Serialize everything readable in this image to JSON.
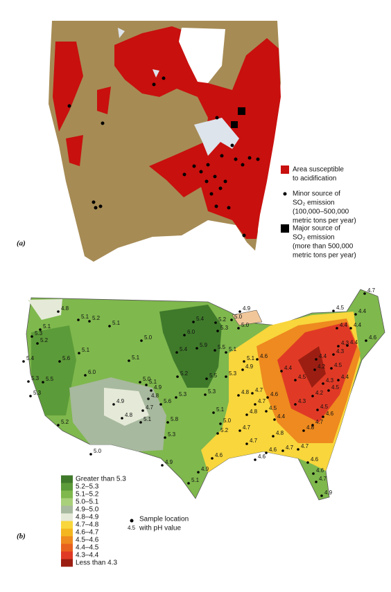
{
  "panels": [
    {
      "label": "(a)",
      "legend": [
        {
          "lines": [
            "Area susceptible",
            "to acidification"
          ],
          "color": "#c8100e"
        },
        {
          "lines": [
            "Minor source of",
            "SO₂ emission",
            "(100,000–500,000",
            "metric tons per year)"
          ],
          "color": "#000000"
        },
        {
          "lines": [
            "Major source of",
            "SO₂ emission",
            "(more than 500,000",
            "metric tons per year)"
          ],
          "color": "#000000"
        }
      ]
    },
    {
      "label": "(b)",
      "legend": [
        {
          "label": "Greater than 5.3",
          "color": "#3f7a2b"
        },
        {
          "label": "5.2–5.3",
          "color": "#5c9b39"
        },
        {
          "label": "5.1–5.2",
          "color": "#7fb84d"
        },
        {
          "label": "5.0–5.1",
          "color": "#a8d07a"
        },
        {
          "label": "4.9–5.0",
          "color": "#a7b99e"
        },
        {
          "label": "4.8–4.9",
          "color": "#e5ead8"
        },
        {
          "label": "4.7–4.8",
          "color": "#f8d63c"
        },
        {
          "label": "4.6–4.7",
          "color": "#f3b620"
        },
        {
          "label": "4.5–4.6",
          "color": "#ee8a1f"
        },
        {
          "label": "4.4–4.5",
          "color": "#e8621f"
        },
        {
          "label": "4.3–4.4",
          "color": "#e03a26"
        },
        {
          "label": "Less than 4.3",
          "color": "#9c1e12"
        }
      ],
      "sample_legend": {
        "lines": [
          "Sample location",
          "with pH value"
        ],
        "example": "4.5"
      },
      "sample_values": [
        "4.8",
        "5.1",
        "5.3",
        "5.2",
        "5.4",
        "5.6",
        "5.1",
        "5.3",
        "5.5",
        "5.3",
        "6.0",
        "5.2",
        "5.0",
        "5.1",
        "5.2",
        "5.1",
        "5.0",
        "5.1",
        "4.9",
        "4.8",
        "4.7",
        "4.8",
        "5.1",
        "5.0",
        "5.1",
        "4.9",
        "5.6",
        "5.8",
        "5.3",
        "5.3",
        "5.2",
        "6.0",
        "5.4",
        "5.4",
        "5.9",
        "5.5",
        "5.3",
        "5.1",
        "5.2",
        "5.0",
        "4.9",
        "4.9",
        "5.1",
        "4.6",
        "5.2",
        "5.3",
        "5.0",
        "4.9",
        "5.5",
        "5.1",
        "5.0",
        "5.1",
        "5.3",
        "4.9",
        "4.6",
        "4.8",
        "4.7",
        "4.7",
        "4.6",
        "4.5",
        "4.8",
        "4.7",
        "4.7",
        "4.6",
        "4.6",
        "4.8",
        "4.7",
        "4.7",
        "4.4",
        "4.3",
        "4.2",
        "4.3",
        "4.5",
        "4.4",
        "4.4",
        "4.2",
        "4.5",
        "4.3",
        "4.4",
        "4.5",
        "4.7",
        "4.4",
        "4.4",
        "4.6",
        "4.3",
        "4.4",
        "4.6",
        "4.7",
        "4.8",
        "4.5",
        "4.6",
        "4.6",
        "4.7",
        "4.9",
        "4.4",
        "4.5"
      ]
    }
  ]
}
